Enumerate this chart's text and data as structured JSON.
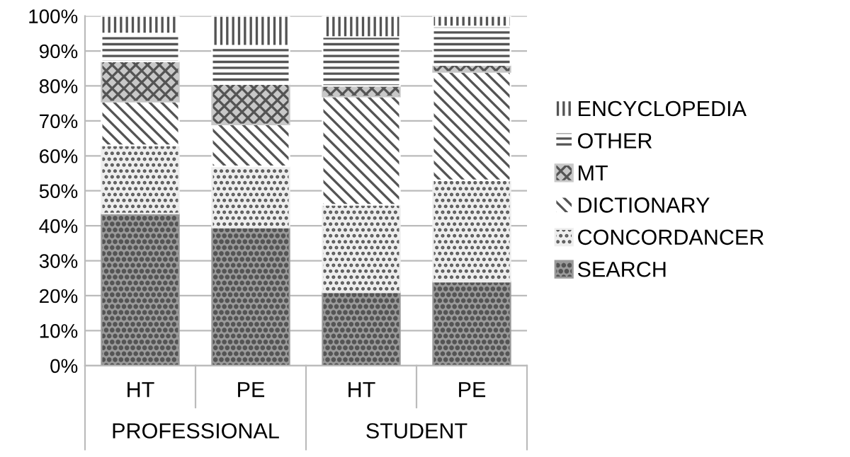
{
  "chart_data": {
    "type": "bar",
    "stacked": true,
    "categories": [
      "HT",
      "PE",
      "HT",
      "PE"
    ],
    "annotations": [
      "PROFESSIONAL",
      "STUDENT"
    ],
    "series": [
      {
        "name": "SEARCH",
        "color": "#9a9a9a",
        "values": [
          43.5,
          39.5,
          21,
          24
        ]
      },
      {
        "name": "CONCORDANCER",
        "color": "#eeeeee",
        "values": [
          19.5,
          17.5,
          25,
          29
        ]
      },
      {
        "name": "DICTIONARY",
        "color": "#ffffff",
        "values": [
          12.5,
          12,
          31,
          31
        ]
      },
      {
        "name": "MT",
        "color": "#c8c8c8",
        "values": [
          11.5,
          11.5,
          3,
          2
        ]
      },
      {
        "name": "OTHER",
        "color": "#ffffff",
        "values": [
          8,
          11,
          14,
          11
        ]
      },
      {
        "name": "ENCYCLOPEDIA",
        "color": "#ffffff",
        "values": [
          5,
          8.5,
          6,
          3
        ]
      }
    ],
    "ylim": [
      0,
      100
    ],
    "yticks": [
      {
        "value": 0,
        "label": "0%"
      },
      {
        "value": 10,
        "label": "10%"
      },
      {
        "value": 20,
        "label": "20%"
      },
      {
        "value": 30,
        "label": "30%"
      },
      {
        "value": 40,
        "label": "40%"
      },
      {
        "value": 50,
        "label": "50%"
      },
      {
        "value": 60,
        "label": "60%"
      },
      {
        "value": 70,
        "label": "70%"
      },
      {
        "value": 80,
        "label": "80%"
      },
      {
        "value": 90,
        "label": "90%"
      },
      {
        "value": 100,
        "label": "100%"
      }
    ],
    "grid": "y",
    "legend": "right"
  }
}
